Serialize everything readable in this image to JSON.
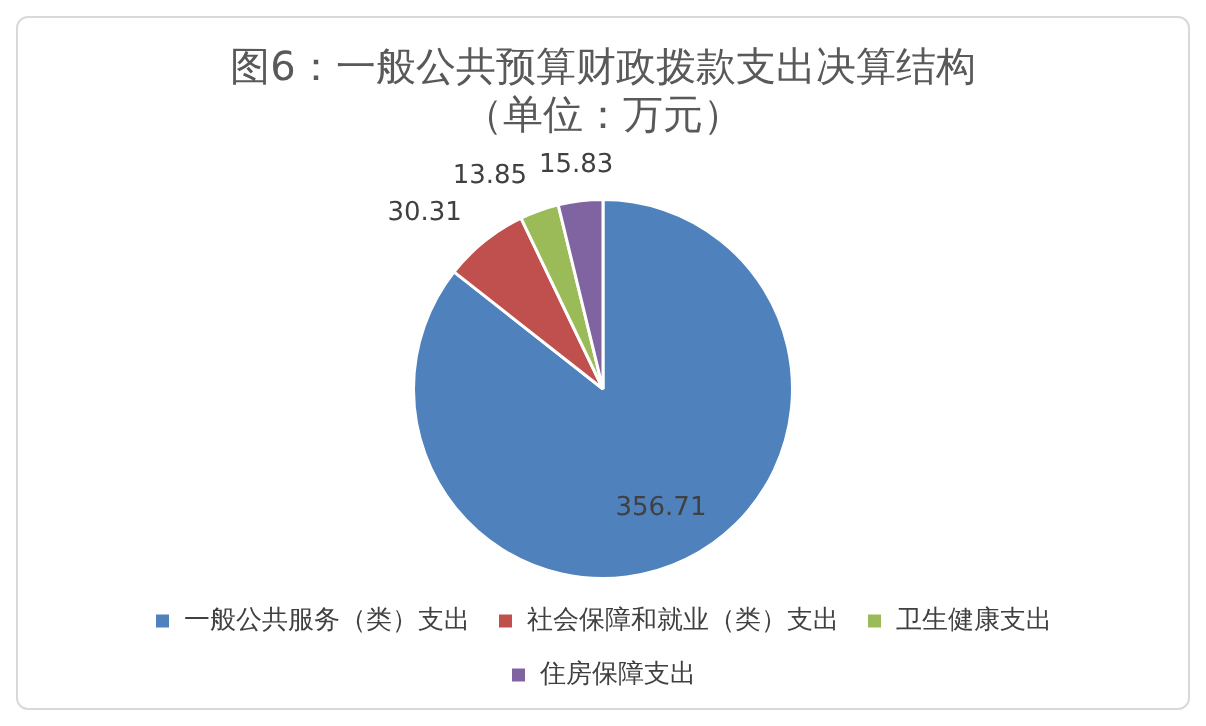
{
  "chart_data": {
    "type": "pie",
    "title": "图6：一般公共预算财政拨款支出决算结构",
    "subtitle": "（单位：万元）",
    "categories": [
      "一般公共服务（类）支出",
      "社会保障和就业（类）支出",
      "卫生健康支出",
      "住房保障支出"
    ],
    "values": [
      356.71,
      30.31,
      13.85,
      15.83
    ],
    "colors": [
      "#4f81bd",
      "#c0504d",
      "#9bbb59",
      "#8064a2"
    ],
    "data_labels": true,
    "legend": "bottom"
  }
}
